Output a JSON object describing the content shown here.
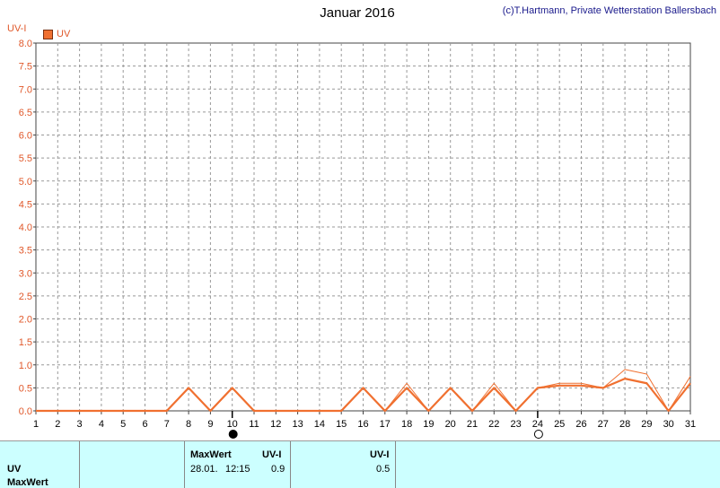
{
  "header": {
    "title": "Januar 2016",
    "credit": "(c)T.Hartmann, Private Wetterstation Ballersbach",
    "y_unit": "UV-I",
    "legend_label": "UV"
  },
  "colors": {
    "series": "#f07030",
    "axis_labels": "#e0582a",
    "grid": "#999999",
    "panel_bg": "#ccffff"
  },
  "chart_data": {
    "type": "line",
    "title": "Januar 2016",
    "ylabel": "UV-I",
    "xlabel": "",
    "x": [
      1,
      2,
      3,
      4,
      5,
      6,
      7,
      8,
      9,
      10,
      11,
      12,
      13,
      14,
      15,
      16,
      17,
      18,
      19,
      20,
      21,
      22,
      23,
      24,
      25,
      26,
      27,
      28,
      29,
      30,
      31
    ],
    "ylim": [
      0,
      8.0
    ],
    "yticks": [
      "0.0",
      "0.5",
      "1.0",
      "1.5",
      "2.0",
      "2.5",
      "3.0",
      "3.5",
      "4.0",
      "4.5",
      "5.0",
      "5.5",
      "6.0",
      "6.5",
      "7.0",
      "7.5",
      "8.0"
    ],
    "grid": true,
    "moon_phases": [
      {
        "day": 10,
        "phase": "new-moon"
      },
      {
        "day": 24,
        "phase": "full-moon"
      }
    ],
    "series": [
      {
        "name": "UV",
        "role": "main",
        "values": [
          0,
          0,
          0,
          0,
          0,
          0,
          0,
          0.5,
          0,
          0.5,
          0,
          0,
          0,
          0,
          0,
          0.5,
          0,
          0.5,
          0,
          0.5,
          0,
          0.5,
          0,
          0.5,
          0.55,
          0.55,
          0.5,
          0.7,
          0.6,
          0,
          0.6
        ]
      },
      {
        "role": "max",
        "values": [
          0,
          0,
          0,
          0,
          0,
          0,
          0,
          0.5,
          0,
          0.5,
          0,
          0,
          0,
          0,
          0,
          0.5,
          0,
          0.6,
          0,
          0.5,
          0,
          0.6,
          0,
          0.5,
          0.6,
          0.6,
          0.5,
          0.9,
          0.8,
          0,
          0.75
        ]
      }
    ]
  },
  "panel": {
    "row_uv": "UV",
    "row_maxwert": "MaxWert",
    "col_maxwert": "MaxWert",
    "col_uvi_1": "UV-I",
    "col_uvi_2": "UV-I",
    "max_date": "28.01.",
    "max_time": "12:15",
    "max_value": "0.9",
    "second_value": "0.5"
  }
}
